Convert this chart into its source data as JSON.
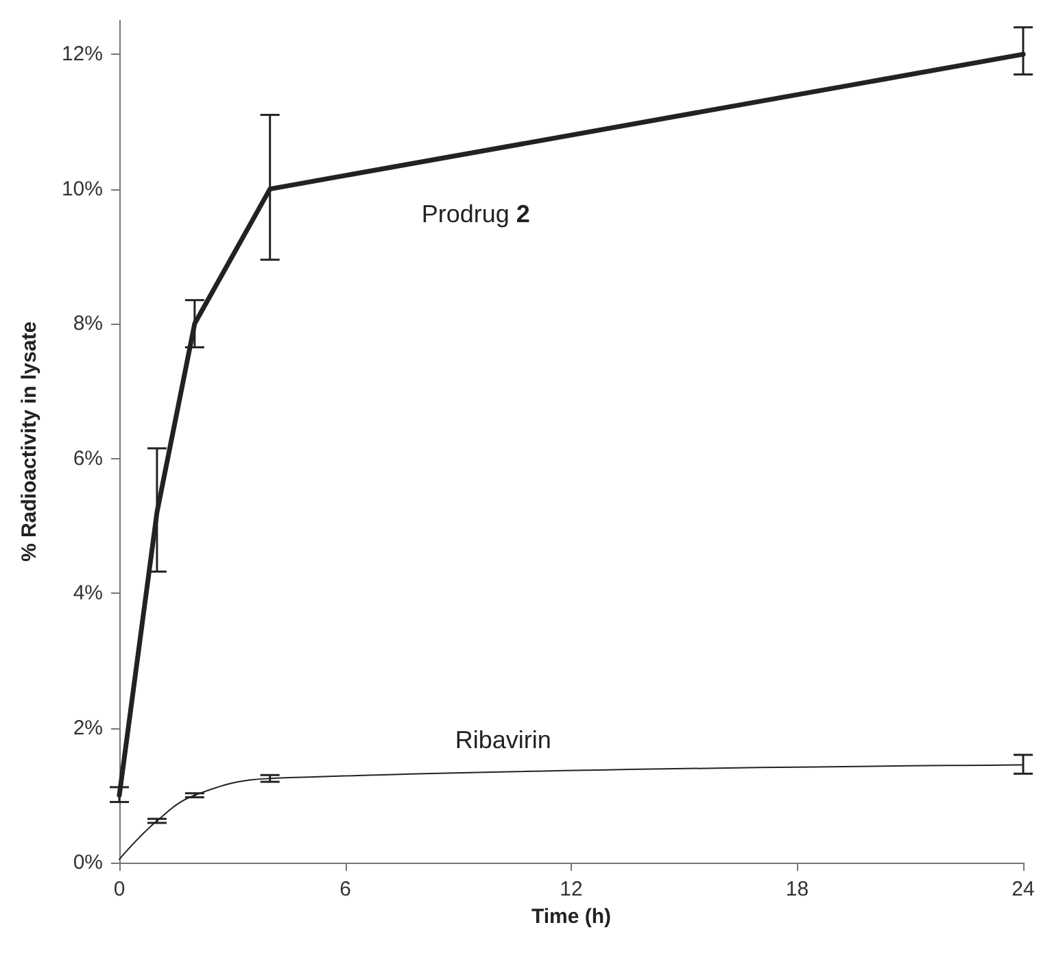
{
  "chart_data": {
    "type": "line",
    "xlabel": "Time (h)",
    "ylabel": "% Radioactivity in lysate",
    "x": [
      0,
      1,
      2,
      4,
      24
    ],
    "xlim": [
      0,
      24
    ],
    "xticks": [
      0,
      6,
      12,
      18,
      24
    ],
    "ylim": [
      0,
      12.5
    ],
    "yticks": [
      {
        "value": 0,
        "label": "0%"
      },
      {
        "value": 2,
        "label": "2%"
      },
      {
        "value": 4,
        "label": "4%"
      },
      {
        "value": 6,
        "label": "6%"
      },
      {
        "value": 8,
        "label": "8%"
      },
      {
        "value": 10,
        "label": "10%"
      },
      {
        "value": 12,
        "label": "12%"
      }
    ],
    "grid": false,
    "legend": false,
    "marker": "none",
    "series": [
      {
        "name": "Prodrug $^{}$2",
        "color": "#222222",
        "values": [
          1.0,
          5.2,
          8.0,
          10.0,
          12.0
        ],
        "errors": [
          [
            0.9,
            1.12
          ],
          [
            4.32,
            6.15
          ],
          [
            7.65,
            8.35
          ],
          [
            8.95,
            11.1
          ],
          [
            11.7,
            12.4
          ]
        ]
      },
      {
        "name": "Ribavirin",
        "color": "#222222",
        "values": [
          0.05,
          0.62,
          1.0,
          1.25,
          1.45
        ],
        "errors": [
          null,
          [
            0.59,
            0.65
          ],
          [
            0.97,
            1.03
          ],
          [
            1.2,
            1.3
          ],
          [
            1.32,
            1.6
          ]
        ]
      }
    ]
  }
}
